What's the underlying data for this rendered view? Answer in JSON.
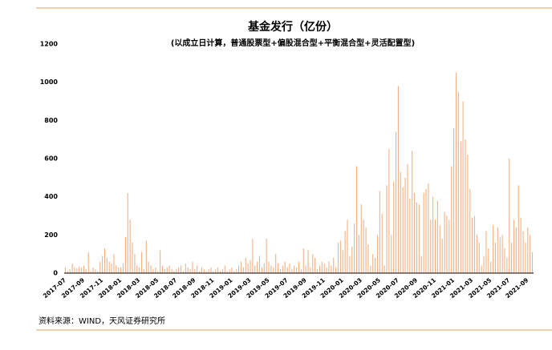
{
  "chart_data": {
    "type": "bar",
    "title": "基金发行（亿份）",
    "subtitle": "(以成立日计算，普通股票型+偏股混合型+平衡混合型+灵活配置型)",
    "source": "资料来源：WIND，天风证券研究所",
    "color": "#f4b183",
    "ylim": [
      0,
      1200
    ],
    "yticks": [
      0,
      200,
      400,
      600,
      800,
      1000,
      1200
    ],
    "grid": false,
    "categories": [
      "2017-07",
      null,
      null,
      null,
      null,
      null,
      null,
      null,
      "2017-09",
      null,
      null,
      null,
      null,
      null,
      null,
      null,
      "2017-11",
      null,
      null,
      null,
      null,
      null,
      null,
      null,
      "2018-01",
      null,
      null,
      null,
      null,
      null,
      null,
      null,
      "2018-03",
      null,
      null,
      null,
      null,
      null,
      null,
      null,
      "2018-05",
      null,
      null,
      null,
      null,
      null,
      null,
      null,
      "2018-07",
      null,
      null,
      null,
      null,
      null,
      null,
      null,
      "2018-09",
      null,
      null,
      null,
      null,
      null,
      null,
      null,
      "2018-11",
      null,
      null,
      null,
      null,
      null,
      null,
      null,
      "2019-01",
      null,
      null,
      null,
      null,
      null,
      null,
      null,
      "2019-03",
      null,
      null,
      null,
      null,
      null,
      null,
      null,
      "2019-05",
      null,
      null,
      null,
      null,
      null,
      null,
      null,
      "2019-07",
      null,
      null,
      null,
      null,
      null,
      null,
      null,
      "2019-09",
      null,
      null,
      null,
      null,
      null,
      null,
      null,
      "2019-11",
      null,
      null,
      null,
      null,
      null,
      null,
      null,
      "2020-01",
      null,
      null,
      null,
      null,
      null,
      null,
      null,
      "2020-03",
      null,
      null,
      null,
      null,
      null,
      null,
      null,
      "2020-05",
      null,
      null,
      null,
      null,
      null,
      null,
      null,
      "2020-07",
      null,
      null,
      null,
      null,
      null,
      null,
      null,
      "2020-09",
      null,
      null,
      null,
      null,
      null,
      null,
      null,
      "2020-11",
      null,
      null,
      null,
      null,
      null,
      null,
      null,
      "2021-01",
      null,
      null,
      null,
      null,
      null,
      null,
      null,
      "2021-03",
      null,
      null,
      null,
      null,
      null,
      null,
      null,
      "2021-05",
      null,
      null,
      null,
      null,
      null,
      null,
      null,
      "2021-07",
      null,
      null,
      null,
      null,
      null,
      null,
      null,
      "2021-09",
      null,
      null
    ],
    "values": [
      30,
      10,
      20,
      50,
      30,
      25,
      35,
      30,
      40,
      20,
      110,
      10,
      30,
      20,
      10,
      60,
      90,
      130,
      80,
      60,
      50,
      100,
      40,
      30,
      30,
      50,
      190,
      420,
      280,
      160,
      100,
      40,
      30,
      110,
      20,
      170,
      60,
      40,
      20,
      30,
      10,
      120,
      40,
      20,
      30,
      40,
      20,
      10,
      20,
      30,
      40,
      10,
      50,
      30,
      20,
      60,
      20,
      40,
      10,
      30,
      20,
      10,
      20,
      30,
      10,
      20,
      30,
      10,
      20,
      40,
      10,
      20,
      30,
      10,
      20,
      40,
      60,
      30,
      80,
      50,
      70,
      180,
      40,
      60,
      90,
      30,
      50,
      180,
      60,
      40,
      30,
      100,
      50,
      20,
      40,
      60,
      30,
      50,
      20,
      40,
      30,
      60,
      20,
      130,
      40,
      120,
      30,
      100,
      80,
      20,
      40,
      60,
      50,
      30,
      60,
      40,
      80,
      30,
      160,
      170,
      120,
      220,
      280,
      90,
      140,
      260,
      560,
      200,
      360,
      280,
      240,
      150,
      40,
      100,
      80,
      200,
      430,
      310,
      40,
      460,
      650,
      200,
      480,
      740,
      980,
      530,
      450,
      500,
      570,
      390,
      640,
      420,
      370,
      360,
      90,
      420,
      440,
      470,
      280,
      400,
      280,
      380,
      250,
      180,
      320,
      300,
      280,
      560,
      760,
      1050,
      950,
      690,
      900,
      700,
      620,
      440,
      290,
      300,
      200,
      160,
      40,
      90,
      220,
      130,
      60,
      250,
      160,
      240,
      190,
      200,
      130,
      80,
      600,
      160,
      280,
      240,
      460,
      290,
      220,
      160,
      240,
      200,
      110
    ]
  }
}
